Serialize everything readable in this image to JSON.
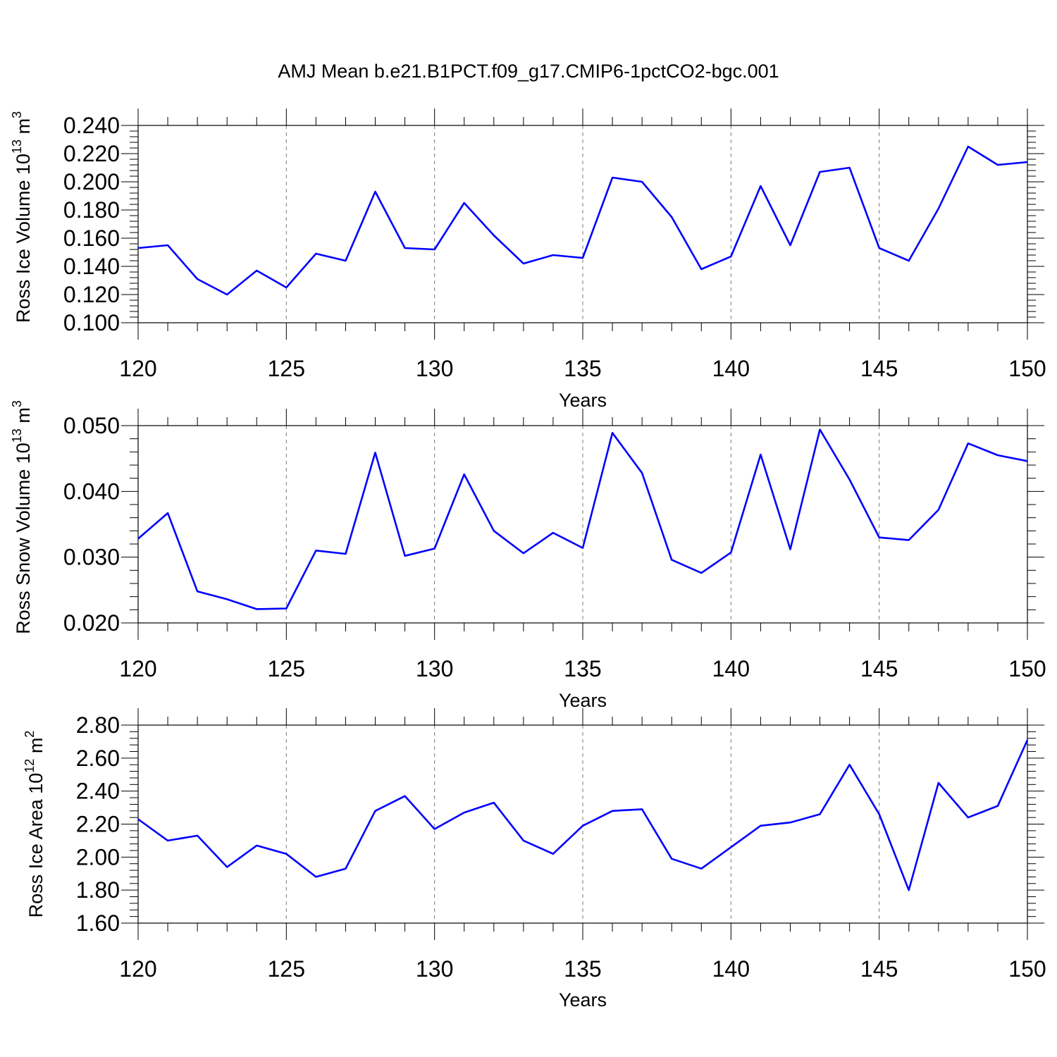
{
  "title": "AMJ Mean b.e21.B1PCT.f09_g17.CMIP6-1pctCO2-bgc.001",
  "line_color": "#0000ff",
  "chart_data": [
    {
      "type": "line",
      "xlabel": "Years",
      "ylabel": "Ross Ice Volume 10",
      "ylabel_exp": "13",
      "ylabel_unit": " m",
      "ylabel_unit_exp": "3",
      "xlim": [
        120,
        150
      ],
      "ylim": [
        0.1,
        0.24
      ],
      "x_ticks": [
        120,
        125,
        130,
        135,
        140,
        145,
        150
      ],
      "y_ticks": [
        "0.100",
        "0.120",
        "0.140",
        "0.160",
        "0.180",
        "0.200",
        "0.220",
        "0.240"
      ],
      "grid": "dashed vertical at major x ticks",
      "x": [
        120,
        121,
        122,
        123,
        124,
        125,
        126,
        127,
        128,
        129,
        130,
        131,
        132,
        133,
        134,
        135,
        136,
        137,
        138,
        139,
        140,
        141,
        142,
        143,
        144,
        145,
        146,
        147,
        148,
        149,
        150
      ],
      "series": [
        {
          "values": [
            0.153,
            0.155,
            0.131,
            0.12,
            0.137,
            0.125,
            0.149,
            0.144,
            0.193,
            0.153,
            0.152,
            0.185,
            0.162,
            0.142,
            0.148,
            0.146,
            0.203,
            0.2,
            0.175,
            0.138,
            0.147,
            0.197,
            0.155,
            0.207,
            0.21,
            0.153,
            0.144,
            0.181,
            0.225,
            0.212,
            0.214
          ]
        }
      ]
    },
    {
      "type": "line",
      "xlabel": "Years",
      "ylabel": "Ross Snow Volume 10",
      "ylabel_exp": "13",
      "ylabel_unit": " m",
      "ylabel_unit_exp": "3",
      "xlim": [
        120,
        150
      ],
      "ylim": [
        0.02,
        0.05
      ],
      "x_ticks": [
        120,
        125,
        130,
        135,
        140,
        145,
        150
      ],
      "y_ticks": [
        "0.020",
        "0.030",
        "0.040",
        "0.050"
      ],
      "grid": "dashed vertical at major x ticks",
      "x": [
        120,
        121,
        122,
        123,
        124,
        125,
        126,
        127,
        128,
        129,
        130,
        131,
        132,
        133,
        134,
        135,
        136,
        137,
        138,
        139,
        140,
        141,
        142,
        143,
        144,
        145,
        146,
        147,
        148,
        149,
        150
      ],
      "series": [
        {
          "values": [
            0.0328,
            0.0367,
            0.0248,
            0.0236,
            0.0221,
            0.0222,
            0.031,
            0.0305,
            0.0459,
            0.0302,
            0.0313,
            0.0426,
            0.034,
            0.0306,
            0.0337,
            0.0314,
            0.0489,
            0.0428,
            0.0296,
            0.0276,
            0.0307,
            0.0456,
            0.0312,
            0.0494,
            0.0418,
            0.033,
            0.0326,
            0.0372,
            0.0473,
            0.0455,
            0.0446
          ]
        }
      ]
    },
    {
      "type": "line",
      "xlabel": "Years",
      "ylabel": "Ross Ice Area 10",
      "ylabel_exp": "12",
      "ylabel_unit": " m",
      "ylabel_unit_exp": "2",
      "xlim": [
        120,
        150
      ],
      "ylim": [
        1.6,
        2.8
      ],
      "x_ticks": [
        120,
        125,
        130,
        135,
        140,
        145,
        150
      ],
      "y_ticks": [
        "1.60",
        "1.80",
        "2.00",
        "2.20",
        "2.40",
        "2.60",
        "2.80"
      ],
      "grid": "dashed vertical at major x ticks",
      "x": [
        120,
        121,
        122,
        123,
        124,
        125,
        126,
        127,
        128,
        129,
        130,
        131,
        132,
        133,
        134,
        135,
        136,
        137,
        138,
        139,
        140,
        141,
        142,
        143,
        144,
        145,
        146,
        147,
        148,
        149,
        150
      ],
      "series": [
        {
          "values": [
            2.23,
            2.1,
            2.13,
            1.94,
            2.07,
            2.02,
            1.88,
            1.93,
            2.28,
            2.37,
            2.17,
            2.27,
            2.33,
            2.1,
            2.02,
            2.19,
            2.28,
            2.29,
            1.99,
            1.93,
            2.06,
            2.19,
            2.21,
            2.26,
            2.56,
            2.26,
            1.8,
            2.45,
            2.24,
            2.31,
            2.71
          ]
        }
      ]
    }
  ]
}
